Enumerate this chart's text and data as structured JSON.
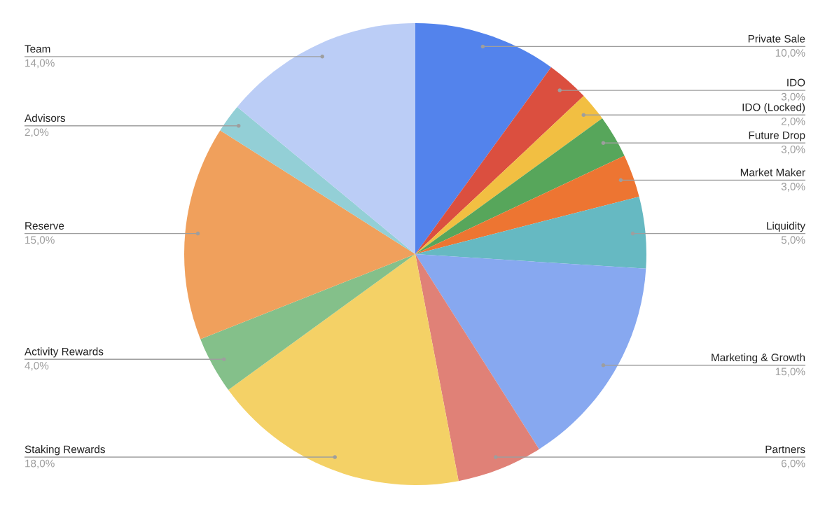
{
  "chart_data": {
    "type": "pie",
    "categories": [
      "Private Sale",
      "IDO",
      "IDO (Locked)",
      "Future Drop",
      "Market Maker",
      "Liquidity",
      "Marketing & Growth",
      "Partners",
      "Staking Rewards",
      "Activity Rewards",
      "Reserve",
      "Advisors",
      "Team"
    ],
    "values": [
      10,
      3,
      2,
      3,
      3,
      5,
      15,
      6,
      18,
      4,
      15,
      2,
      14
    ],
    "value_labels": [
      "10,0%",
      "3,0%",
      "2,0%",
      "3,0%",
      "3,0%",
      "5,0%",
      "15,0%",
      "6,0%",
      "18,0%",
      "4,0%",
      "15,0%",
      "2,0%",
      "14,0%"
    ],
    "colors": [
      "#5383ec",
      "#db4f3f",
      "#f2bf42",
      "#57a65b",
      "#ed7532",
      "#66b9c2",
      "#87a8f0",
      "#e08177",
      "#f4d166",
      "#84c08a",
      "#f0a05c",
      "#93cfd6",
      "#bbcdf6"
    ]
  }
}
